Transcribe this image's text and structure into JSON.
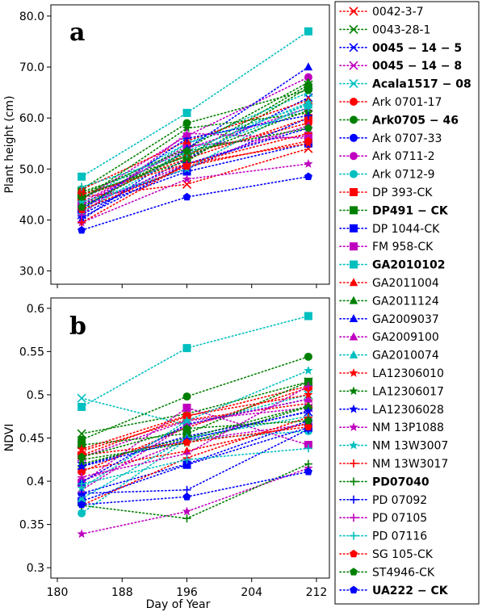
{
  "chart_data": [
    {
      "type": "line",
      "panel_label": "a",
      "ylabel": "Plant height (cm)",
      "xlabel": "",
      "xlim": [
        179.2,
        213.6
      ],
      "ylim": [
        27.4,
        82.2
      ],
      "yticks": [
        "30.0",
        "40.0",
        "50.0",
        "60.0",
        "70.0",
        "80.0"
      ],
      "x": [
        183,
        196,
        211
      ],
      "series": [
        {
          "name": "0042-3-7",
          "values": [
            44.5,
            47.0,
            54.0
          ]
        },
        {
          "name": "0043-28-1",
          "values": [
            45.5,
            52.5,
            66.5
          ]
        },
        {
          "name": "0045 − 14 − 5",
          "values": [
            41.0,
            52.0,
            64.0
          ]
        },
        {
          "name": "0045 − 14 − 8",
          "values": [
            43.5,
            54.0,
            62.0
          ]
        },
        {
          "name": "Acala1517 − 08",
          "values": [
            44.0,
            55.0,
            65.0
          ]
        },
        {
          "name": "Ark 0701-17",
          "values": [
            43.0,
            53.0,
            59.0
          ]
        },
        {
          "name": "Ark0705 − 46",
          "values": [
            46.0,
            59.0,
            65.5
          ]
        },
        {
          "name": "Ark 0707-33",
          "values": [
            43.0,
            50.0,
            60.0
          ]
        },
        {
          "name": "Ark 0711-2",
          "values": [
            44.0,
            56.5,
            68.0
          ]
        },
        {
          "name": "Ark 0712-9",
          "values": [
            42.0,
            55.0,
            62.5
          ]
        },
        {
          "name": "DP 393-CK",
          "values": [
            44.5,
            52.0,
            60.0
          ]
        },
        {
          "name": "DP491 − CK",
          "values": [
            45.0,
            51.5,
            66.0
          ]
        },
        {
          "name": "DP 1044-CK",
          "values": [
            42.0,
            49.5,
            55.0
          ]
        },
        {
          "name": "FM 958-CK",
          "values": [
            43.0,
            54.5,
            56.5
          ]
        },
        {
          "name": "GA2010102",
          "values": [
            48.5,
            61.0,
            77.0
          ]
        },
        {
          "name": "GA2011004",
          "values": [
            46.0,
            55.5,
            63.5
          ]
        },
        {
          "name": "GA2011124",
          "values": [
            45.0,
            54.0,
            67.0
          ]
        },
        {
          "name": "GA2009037",
          "values": [
            40.0,
            54.0,
            70.0
          ]
        },
        {
          "name": "GA2009100",
          "values": [
            42.5,
            51.0,
            58.5
          ]
        },
        {
          "name": "GA2010074",
          "values": [
            41.5,
            53.5,
            63.0
          ]
        },
        {
          "name": "LA12306010",
          "values": [
            45.0,
            51.0,
            55.0
          ]
        },
        {
          "name": "LA12306017",
          "values": [
            44.0,
            58.0,
            61.0
          ]
        },
        {
          "name": "LA12306028",
          "values": [
            40.5,
            51.0,
            58.0
          ]
        },
        {
          "name": "NM 13P1088",
          "values": [
            39.5,
            48.0,
            51.0
          ]
        },
        {
          "name": "NM 13W3007",
          "values": [
            43.5,
            50.0,
            63.0
          ]
        },
        {
          "name": "NM 13W3017",
          "values": [
            39.5,
            51.0,
            57.0
          ]
        },
        {
          "name": "PD07040",
          "values": [
            44.5,
            52.5,
            61.5
          ]
        },
        {
          "name": "PD 07092",
          "values": [
            42.0,
            56.0,
            60.5
          ]
        },
        {
          "name": "PD 07105",
          "values": [
            41.0,
            57.0,
            56.0
          ]
        },
        {
          "name": "PD 07116",
          "values": [
            46.5,
            53.0,
            62.0
          ]
        },
        {
          "name": "SG 105-CK",
          "values": [
            42.0,
            50.5,
            55.5
          ]
        },
        {
          "name": "ST4946-CK",
          "values": [
            42.5,
            53.5,
            58.0
          ]
        },
        {
          "name": "UA222 − CK",
          "values": [
            38.0,
            44.5,
            48.5
          ]
        }
      ]
    },
    {
      "type": "line",
      "panel_label": "b",
      "ylabel": "NDVI",
      "xlabel": "Day of Year",
      "xlim": [
        179.2,
        213.6
      ],
      "ylim": [
        0.288,
        0.612
      ],
      "xticks": [
        "180",
        "188",
        "196",
        "204",
        "212"
      ],
      "yticks": [
        "0.3",
        "0.35",
        "0.4",
        "0.45",
        "0.5",
        "0.55",
        "0.6"
      ],
      "x": [
        183,
        196,
        211
      ],
      "series": [
        {
          "name": "0042-3-7",
          "values": [
            0.435,
            0.471,
            0.49
          ]
        },
        {
          "name": "0043-28-1",
          "values": [
            0.455,
            0.478,
            0.515
          ]
        },
        {
          "name": "0045 − 14 − 5",
          "values": [
            0.418,
            0.452,
            0.48
          ]
        },
        {
          "name": "0045 − 14 − 8",
          "values": [
            0.428,
            0.47,
            0.485
          ]
        },
        {
          "name": "Acala1517 − 08",
          "values": [
            0.496,
            0.465,
            0.5
          ]
        },
        {
          "name": "Ark 0701-17",
          "values": [
            0.411,
            0.462,
            0.508
          ]
        },
        {
          "name": "Ark0705 − 46",
          "values": [
            0.448,
            0.498,
            0.544
          ]
        },
        {
          "name": "Ark 0707-33",
          "values": [
            0.386,
            0.42,
            0.47
          ]
        },
        {
          "name": "Ark 0711-2",
          "values": [
            0.4,
            0.447,
            0.466
          ]
        },
        {
          "name": "Ark 0712-9",
          "values": [
            0.363,
            0.448,
            0.458
          ]
        },
        {
          "name": "DP 393-CK",
          "values": [
            0.43,
            0.475,
            0.51
          ]
        },
        {
          "name": "DP491 − CK",
          "values": [
            0.442,
            0.455,
            0.515
          ]
        },
        {
          "name": "DP 1044-CK",
          "values": [
            0.377,
            0.419,
            0.462
          ]
        },
        {
          "name": "FM 958-CK",
          "values": [
            0.398,
            0.485,
            0.442
          ]
        },
        {
          "name": "GA2010102",
          "values": [
            0.486,
            0.554,
            0.591
          ]
        },
        {
          "name": "GA2011004",
          "values": [
            0.413,
            0.435,
            0.467
          ]
        },
        {
          "name": "GA2011124",
          "values": [
            0.42,
            0.45,
            0.487
          ]
        },
        {
          "name": "GA2009037",
          "values": [
            0.399,
            0.466,
            0.495
          ]
        },
        {
          "name": "GA2009100",
          "values": [
            0.39,
            0.465,
            0.495
          ]
        },
        {
          "name": "GA2010074",
          "values": [
            0.38,
            0.45,
            0.475
          ]
        },
        {
          "name": "LA12306010",
          "values": [
            0.437,
            0.476,
            0.5
          ]
        },
        {
          "name": "LA12306017",
          "values": [
            0.425,
            0.444,
            0.486
          ]
        },
        {
          "name": "LA12306028",
          "values": [
            0.417,
            0.448,
            0.481
          ]
        },
        {
          "name": "NM 13P1088",
          "values": [
            0.339,
            0.365,
            0.415
          ]
        },
        {
          "name": "NM 13W3007",
          "values": [
            0.392,
            0.47,
            0.528
          ]
        },
        {
          "name": "NM 13W3017",
          "values": [
            0.372,
            0.427,
            0.474
          ]
        },
        {
          "name": "PD07040",
          "values": [
            0.372,
            0.357,
            0.42
          ]
        },
        {
          "name": "PD 07092",
          "values": [
            0.386,
            0.39,
            0.46
          ]
        },
        {
          "name": "PD 07105",
          "values": [
            0.405,
            0.432,
            0.51
          ]
        },
        {
          "name": "PD 07116",
          "values": [
            0.397,
            0.425,
            0.438
          ]
        },
        {
          "name": "SG 105-CK",
          "values": [
            0.43,
            0.445,
            0.463
          ]
        },
        {
          "name": "ST4946-CK",
          "values": [
            0.428,
            0.461,
            0.47
          ]
        },
        {
          "name": "UA222 − CK",
          "values": [
            0.373,
            0.382,
            0.411
          ]
        }
      ]
    }
  ],
  "legend": {
    "placement": "right",
    "entries": [
      {
        "name": "0042-3-7",
        "color": "#ff0000",
        "marker": "x",
        "bold": false
      },
      {
        "name": "0043-28-1",
        "color": "#008000",
        "marker": "x",
        "bold": false
      },
      {
        "name": "0045 − 14 − 5",
        "color": "#0000ff",
        "marker": "x",
        "bold": true
      },
      {
        "name": "0045 − 14 − 8",
        "color": "#bf00bf",
        "marker": "x",
        "bold": true
      },
      {
        "name": "Acala1517 − 08",
        "color": "#00bfbf",
        "marker": "x",
        "bold": true
      },
      {
        "name": "Ark 0701-17",
        "color": "#ff0000",
        "marker": "circle",
        "bold": false
      },
      {
        "name": "Ark0705 − 46",
        "color": "#008000",
        "marker": "circle",
        "bold": true
      },
      {
        "name": "Ark 0707-33",
        "color": "#0000ff",
        "marker": "circle",
        "bold": false
      },
      {
        "name": "Ark 0711-2",
        "color": "#bf00bf",
        "marker": "circle",
        "bold": false
      },
      {
        "name": "Ark 0712-9",
        "color": "#00bfbf",
        "marker": "circle",
        "bold": false
      },
      {
        "name": "DP 393-CK",
        "color": "#ff0000",
        "marker": "square",
        "bold": false
      },
      {
        "name": "DP491 − CK",
        "color": "#008000",
        "marker": "square",
        "bold": true
      },
      {
        "name": "DP 1044-CK",
        "color": "#0000ff",
        "marker": "square",
        "bold": false
      },
      {
        "name": "FM 958-CK",
        "color": "#bf00bf",
        "marker": "square",
        "bold": false
      },
      {
        "name": "GA2010102",
        "color": "#00bfbf",
        "marker": "square",
        "bold": true
      },
      {
        "name": "GA2011004",
        "color": "#ff0000",
        "marker": "triangle",
        "bold": false
      },
      {
        "name": "GA2011124",
        "color": "#008000",
        "marker": "triangle",
        "bold": false
      },
      {
        "name": "GA2009037",
        "color": "#0000ff",
        "marker": "triangle",
        "bold": false
      },
      {
        "name": "GA2009100",
        "color": "#bf00bf",
        "marker": "triangle",
        "bold": false
      },
      {
        "name": "GA2010074",
        "color": "#00bfbf",
        "marker": "triangle",
        "bold": false
      },
      {
        "name": "LA12306010",
        "color": "#ff0000",
        "marker": "star",
        "bold": false
      },
      {
        "name": "LA12306017",
        "color": "#008000",
        "marker": "star",
        "bold": false
      },
      {
        "name": "LA12306028",
        "color": "#0000ff",
        "marker": "star",
        "bold": false
      },
      {
        "name": "NM 13P1088",
        "color": "#bf00bf",
        "marker": "star",
        "bold": false
      },
      {
        "name": "NM 13W3007",
        "color": "#00bfbf",
        "marker": "star",
        "bold": false
      },
      {
        "name": "NM 13W3017",
        "color": "#ff0000",
        "marker": "plus",
        "bold": false
      },
      {
        "name": "PD07040",
        "color": "#008000",
        "marker": "plus",
        "bold": true
      },
      {
        "name": "PD 07092",
        "color": "#0000ff",
        "marker": "plus",
        "bold": false
      },
      {
        "name": "PD 07105",
        "color": "#bf00bf",
        "marker": "plus",
        "bold": false
      },
      {
        "name": "PD 07116",
        "color": "#00bfbf",
        "marker": "plus",
        "bold": false
      },
      {
        "name": "SG 105-CK",
        "color": "#ff0000",
        "marker": "pentagon",
        "bold": false
      },
      {
        "name": "ST4946-CK",
        "color": "#008000",
        "marker": "pentagon",
        "bold": false
      },
      {
        "name": "UA222 − CK",
        "color": "#0000ff",
        "marker": "pentagon",
        "bold": true
      }
    ]
  }
}
